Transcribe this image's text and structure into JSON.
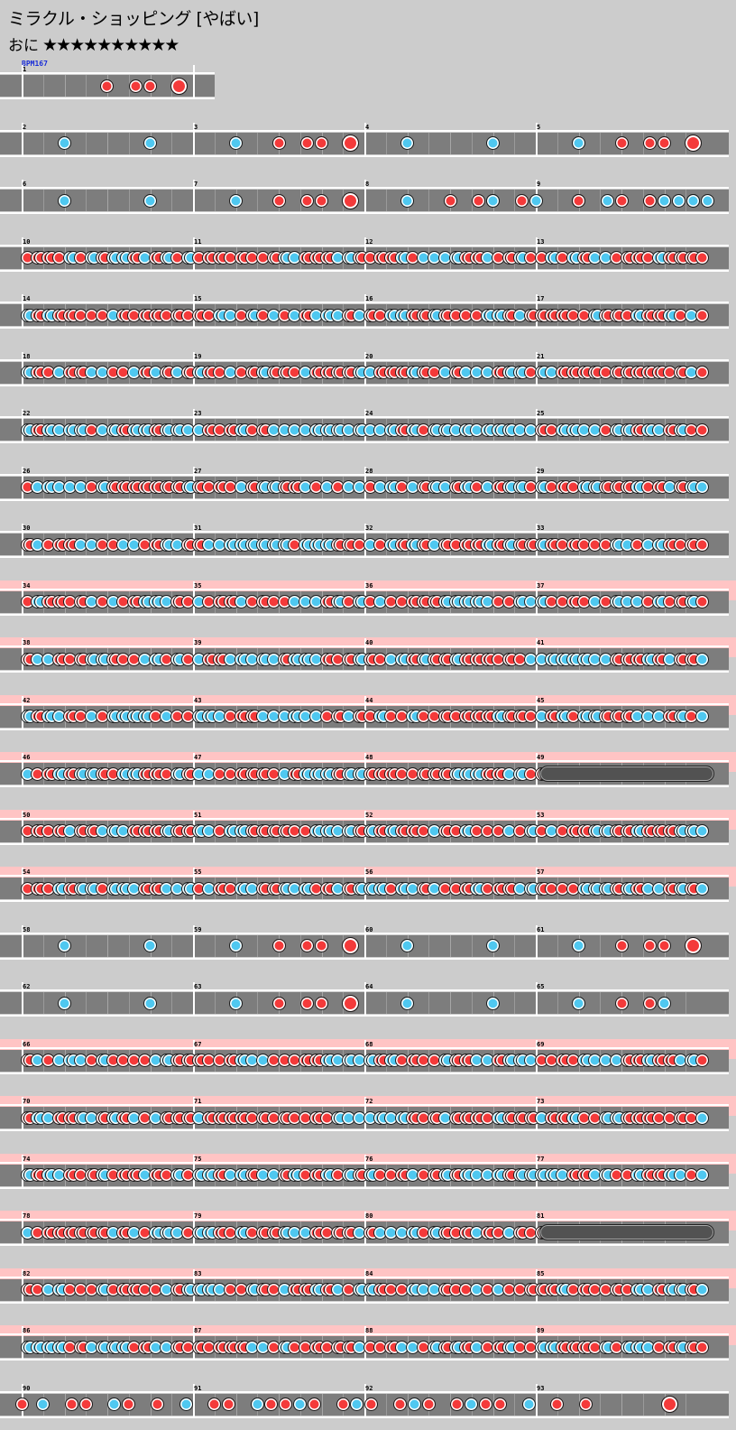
{
  "header": {
    "title": "ミラクル・ショッピング [やばい]",
    "difficulty_label": "おに",
    "stars": "★★★★★★★★★★",
    "bpm": "BPM167"
  },
  "colors": {
    "don": "#f43a3a",
    "ka": "#4fc8f0",
    "lane": "#7d7d7d",
    "gogo": "#ffc4c4",
    "background": "#cccccc"
  },
  "rows": [
    {
      "measures": [
        1
      ],
      "gogo": false,
      "pattern": "intro"
    },
    {
      "measures": [
        2,
        3,
        4,
        5
      ],
      "gogo": false,
      "pattern": "sparseA"
    },
    {
      "measures": [
        6,
        7,
        8,
        9
      ],
      "gogo": false,
      "pattern": "sparseB"
    },
    {
      "measures": [
        10,
        11,
        12,
        13
      ],
      "gogo": false,
      "pattern": "dense"
    },
    {
      "measures": [
        14,
        15,
        16,
        17
      ],
      "gogo": false,
      "pattern": "dense"
    },
    {
      "measures": [
        18,
        19,
        20,
        21
      ],
      "gogo": false,
      "pattern": "dense"
    },
    {
      "measures": [
        22,
        23,
        24,
        25
      ],
      "gogo": false,
      "pattern": "denseKa"
    },
    {
      "measures": [
        26,
        27,
        28,
        29
      ],
      "gogo": false,
      "pattern": "dense"
    },
    {
      "measures": [
        30,
        31,
        32,
        33
      ],
      "gogo": false,
      "pattern": "dense"
    },
    {
      "measures": [
        34,
        35,
        36,
        37
      ],
      "gogo": true,
      "pattern": "dense"
    },
    {
      "measures": [
        38,
        39,
        40,
        41
      ],
      "gogo": true,
      "pattern": "dense"
    },
    {
      "measures": [
        42,
        43,
        44,
        45
      ],
      "gogo": true,
      "pattern": "dense"
    },
    {
      "measures": [
        46,
        47,
        48,
        49
      ],
      "gogo": true,
      "pattern": "rollEnd"
    },
    {
      "measures": [
        50,
        51,
        52,
        53
      ],
      "gogo": true,
      "pattern": "dense"
    },
    {
      "measures": [
        54,
        55,
        56,
        57
      ],
      "gogo": true,
      "pattern": "dense"
    },
    {
      "measures": [
        58,
        59,
        60,
        61
      ],
      "gogo": false,
      "pattern": "sparseA"
    },
    {
      "measures": [
        62,
        63,
        64,
        65
      ],
      "gogo": false,
      "pattern": "sparseC"
    },
    {
      "measures": [
        66,
        67,
        68,
        69
      ],
      "gogo": true,
      "pattern": "dense"
    },
    {
      "measures": [
        70,
        71,
        72,
        73
      ],
      "gogo": true,
      "pattern": "dense"
    },
    {
      "measures": [
        74,
        75,
        76,
        77
      ],
      "gogo": true,
      "pattern": "dense"
    },
    {
      "measures": [
        78,
        79,
        80,
        81
      ],
      "gogo": true,
      "pattern": "rollEnd"
    },
    {
      "measures": [
        82,
        83,
        84,
        85
      ],
      "gogo": true,
      "pattern": "dense"
    },
    {
      "measures": [
        86,
        87,
        88,
        89
      ],
      "gogo": true,
      "pattern": "dense"
    },
    {
      "measures": [
        90,
        91,
        92,
        93
      ],
      "gogo": false,
      "pattern": "finale"
    }
  ]
}
